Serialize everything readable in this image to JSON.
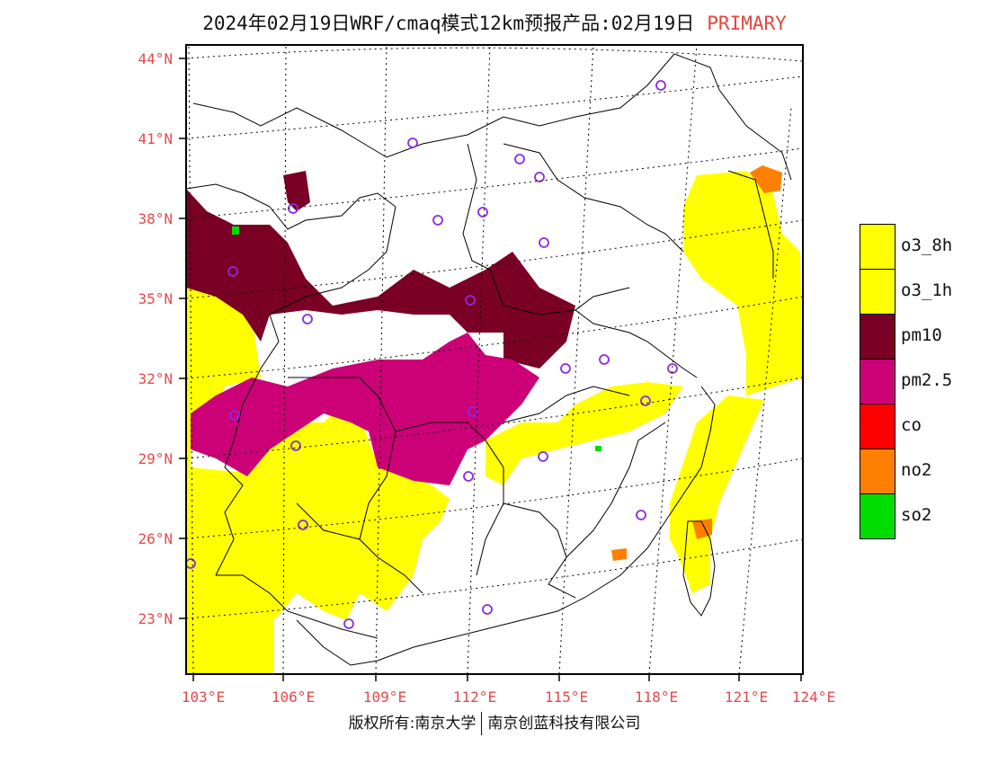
{
  "title": {
    "main": "2024年02月19日WRF/cmaq模式12km预报产品:02月19日",
    "primary": "PRIMARY"
  },
  "map": {
    "lat_labels": [
      "44°N",
      "41°N",
      "38°N",
      "35°N",
      "32°N",
      "29°N",
      "26°N",
      "23°N"
    ],
    "lon_labels": [
      "103°E",
      "106°E",
      "109°E",
      "112°E",
      "115°E",
      "118°E",
      "121°E",
      "124°E"
    ],
    "colors": {
      "o3_8h": "#ffff00",
      "o3_1h": "#ffff00",
      "pm10": "#7a0025",
      "pm2_5": "#cc0077",
      "co": "#ff0000",
      "no2": "#ff7f00",
      "so2": "#00dd00",
      "boundary": "#000000",
      "grid": "#000000",
      "station": "#8a2be2",
      "axis_label": "#e34a4a"
    }
  },
  "legend": {
    "items": [
      {
        "label": "o3_8h",
        "color": "#ffff00"
      },
      {
        "label": "o3_1h",
        "color": "#ffff00"
      },
      {
        "label": "pm10",
        "color": "#7a0025"
      },
      {
        "label": "pm2.5",
        "color": "#cc0077"
      },
      {
        "label": "co",
        "color": "#ff0000"
      },
      {
        "label": "no2",
        "color": "#ff7f00"
      },
      {
        "label": "so2",
        "color": "#00dd00"
      }
    ]
  },
  "footer": {
    "left": "版权所有:南京大学",
    "right": "南京创蓝科技有限公司"
  }
}
